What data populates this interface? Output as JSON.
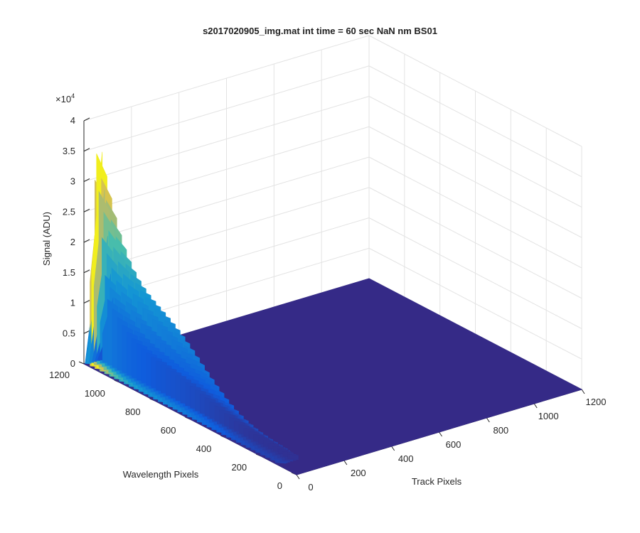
{
  "chart_data": {
    "type": "surface3d",
    "title": "s2017020905_img.mat int time = 60 sec  NaN nm BS01",
    "zlabel": "Signal (ADU)",
    "xlabel": "Track Pixels",
    "ylabel": "Wavelength Pixels",
    "z_multiplier_label": "×10",
    "z_multiplier_exponent": "4",
    "xlim": [
      0,
      1200
    ],
    "ylim": [
      0,
      1200
    ],
    "zlim": [
      0,
      40000
    ],
    "x_ticks": [
      "0",
      "200",
      "400",
      "600",
      "800",
      "1000",
      "1200"
    ],
    "y_ticks": [
      "0",
      "200",
      "400",
      "600",
      "800",
      "1000",
      "1200"
    ],
    "z_ticks": [
      "0",
      "0.5",
      "1",
      "1.5",
      "2",
      "2.5",
      "3",
      "3.5",
      "4"
    ],
    "grid": true,
    "colormap": "parula",
    "colors": {
      "floor": "#352a87",
      "low": "#0f5cdd",
      "mid": "#1496d4",
      "midhigh": "#4abfaa",
      "high": "#d1bb59",
      "peak": "#f9fb0e"
    },
    "peak_signal": 36000,
    "secondary_peak_signal": 11000
  }
}
